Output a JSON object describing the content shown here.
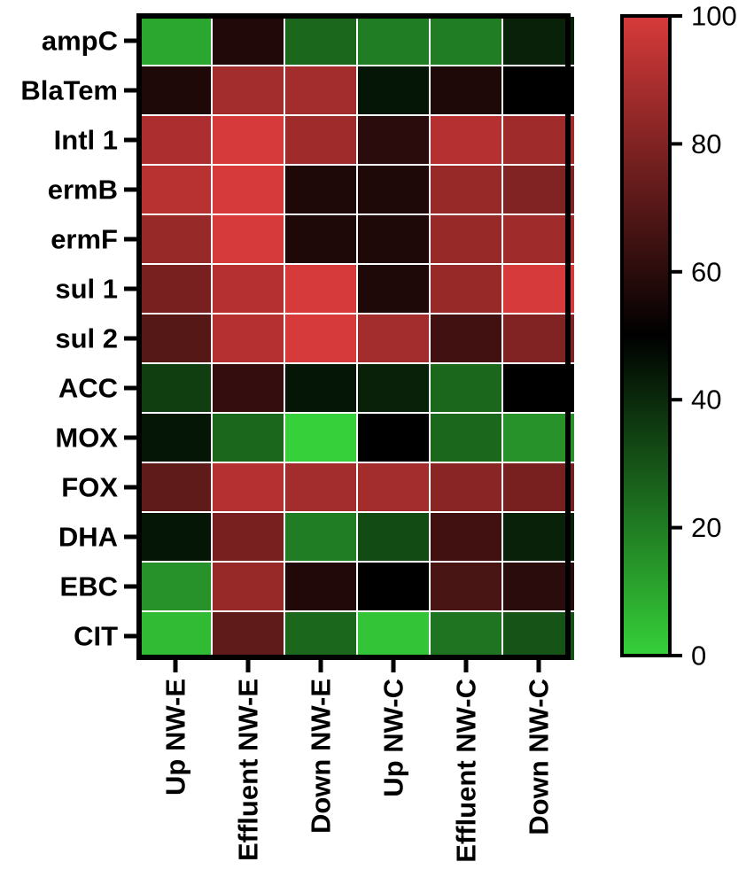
{
  "chart_data": {
    "type": "heatmap",
    "title": "",
    "xlabel": "",
    "ylabel": "",
    "rows": [
      "ampC",
      "BlaTem",
      "Intl 1",
      "ermB",
      "ermF",
      "sul 1",
      "sul 2",
      "ACC",
      "MOX",
      "FOX",
      "DHA",
      "EBC",
      "CIT"
    ],
    "columns": [
      "Up NW-E",
      "Effluent NW-E",
      "Down NW-E",
      "Up NW-C",
      "Effluent NW-C",
      "Down NW-C"
    ],
    "values": [
      [
        10,
        58,
        25,
        20,
        20,
        42
      ],
      [
        57,
        88,
        88,
        45,
        57,
        50
      ],
      [
        90,
        100,
        87,
        60,
        92,
        87
      ],
      [
        93,
        100,
        57,
        57,
        85,
        80
      ],
      [
        85,
        100,
        57,
        57,
        85,
        87
      ],
      [
        78,
        92,
        100,
        57,
        85,
        100
      ],
      [
        70,
        92,
        100,
        88,
        65,
        80
      ],
      [
        35,
        62,
        45,
        42,
        25,
        50
      ],
      [
        45,
        25,
        0,
        50,
        25,
        15
      ],
      [
        72,
        92,
        88,
        88,
        82,
        78
      ],
      [
        45,
        78,
        20,
        32,
        65,
        42
      ],
      [
        15,
        85,
        58,
        50,
        67,
        60
      ],
      [
        5,
        72,
        25,
        3,
        22,
        30
      ]
    ],
    "colorbar": {
      "min": 0,
      "max": 100,
      "ticks": [
        "0",
        "20",
        "40",
        "60",
        "80",
        "100"
      ],
      "colors": {
        "low": "#36d03a",
        "mid": "#000000",
        "high": "#d73a3a"
      }
    },
    "grid": true,
    "legend": "right"
  }
}
